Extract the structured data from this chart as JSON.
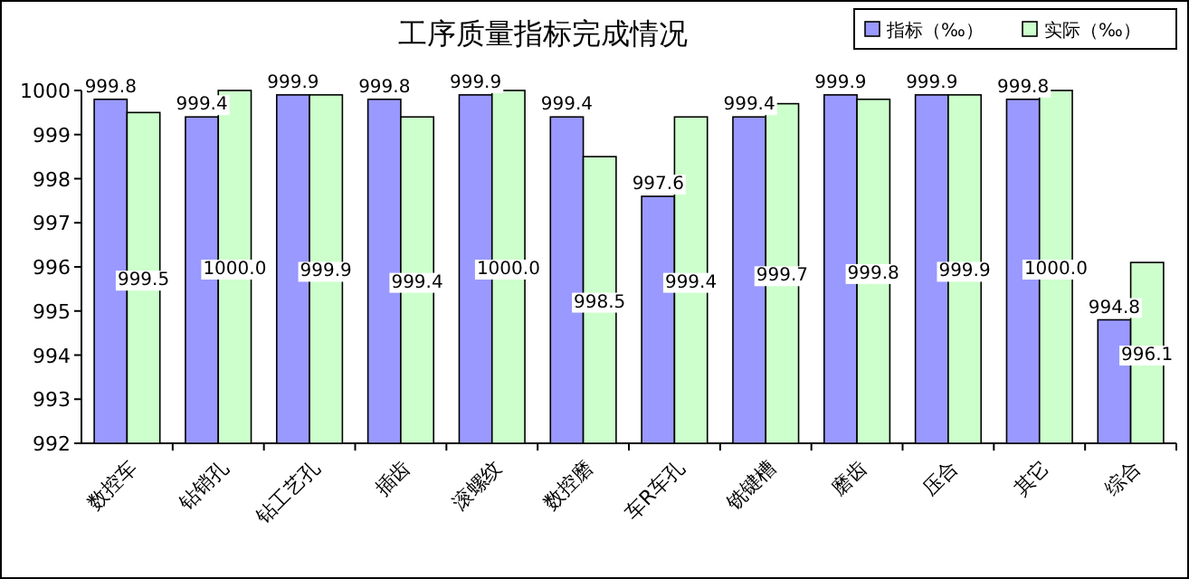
{
  "chart_data": {
    "type": "bar",
    "title": "工序质量指标完成情况",
    "categories": [
      "数控车",
      "钻销孔",
      "钻工艺孔",
      "插齿",
      "滚螺纹",
      "数控磨",
      "车R车孔",
      "铣键槽",
      "磨齿",
      "压合",
      "其它",
      "综合"
    ],
    "series": [
      {
        "name": "指标（‰）",
        "color": "#9999ff",
        "values": [
          999.8,
          999.4,
          999.9,
          999.8,
          999.9,
          999.4,
          997.6,
          999.4,
          999.9,
          999.9,
          999.8,
          994.8
        ],
        "value_labels": [
          "999.8",
          "999.4",
          "999.9",
          "999.8",
          "999.9",
          "999.4",
          "997.6",
          "999.4",
          "999.9",
          "999.9",
          "999.8",
          "994.8"
        ]
      },
      {
        "name": "实际（‰）",
        "color": "#ccffcc",
        "values": [
          999.5,
          1000.0,
          999.9,
          999.4,
          1000.0,
          998.5,
          999.4,
          999.7,
          999.8,
          999.9,
          1000.0,
          996.1
        ],
        "value_labels": [
          "999.5",
          "1000.0",
          "999.9",
          "999.4",
          "1000.0",
          "998.5",
          "999.4",
          "999.7",
          "999.8",
          "999.9",
          "1000.0",
          "996.1"
        ]
      }
    ],
    "ylim": [
      992,
      1000
    ],
    "yticks": [
      992,
      993,
      994,
      995,
      996,
      997,
      998,
      999,
      1000
    ],
    "legend": "top right",
    "grid": false
  }
}
